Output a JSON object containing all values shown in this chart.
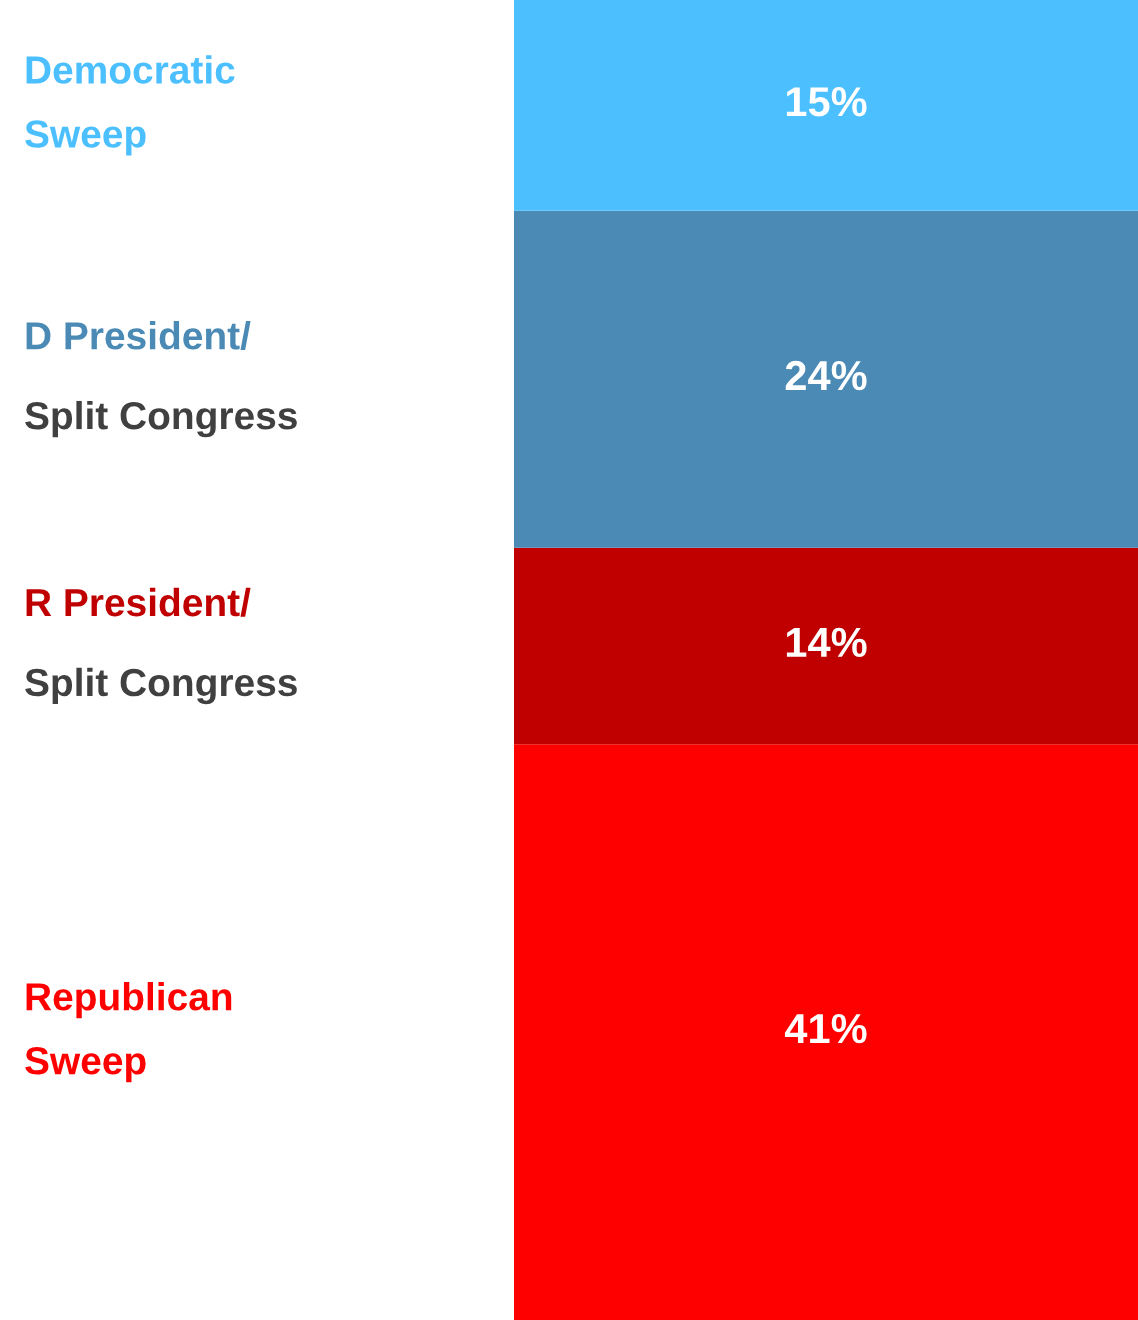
{
  "chart_data": {
    "type": "bar",
    "stacked": true,
    "categories": [
      null
    ],
    "series": [
      {
        "name": "Republican\nSweep",
        "color": "#ff0000",
        "values": [
          41
        ],
        "value_labels": [
          "41%"
        ]
      },
      {
        "name": "R President/\nSplit Congress",
        "color": "#c00000",
        "values": [
          14
        ],
        "value_labels": [
          "14%"
        ]
      },
      {
        "name": "D President/\nSplit Congress",
        "color": "#4a8ab5",
        "values": [
          24
        ],
        "value_labels": [
          "24%"
        ]
      },
      {
        "name": "Democratic\nSweep",
        "color": "#4cc0ff",
        "values": [
          15
        ],
        "value_labels": [
          "15%"
        ]
      }
    ]
  }
}
